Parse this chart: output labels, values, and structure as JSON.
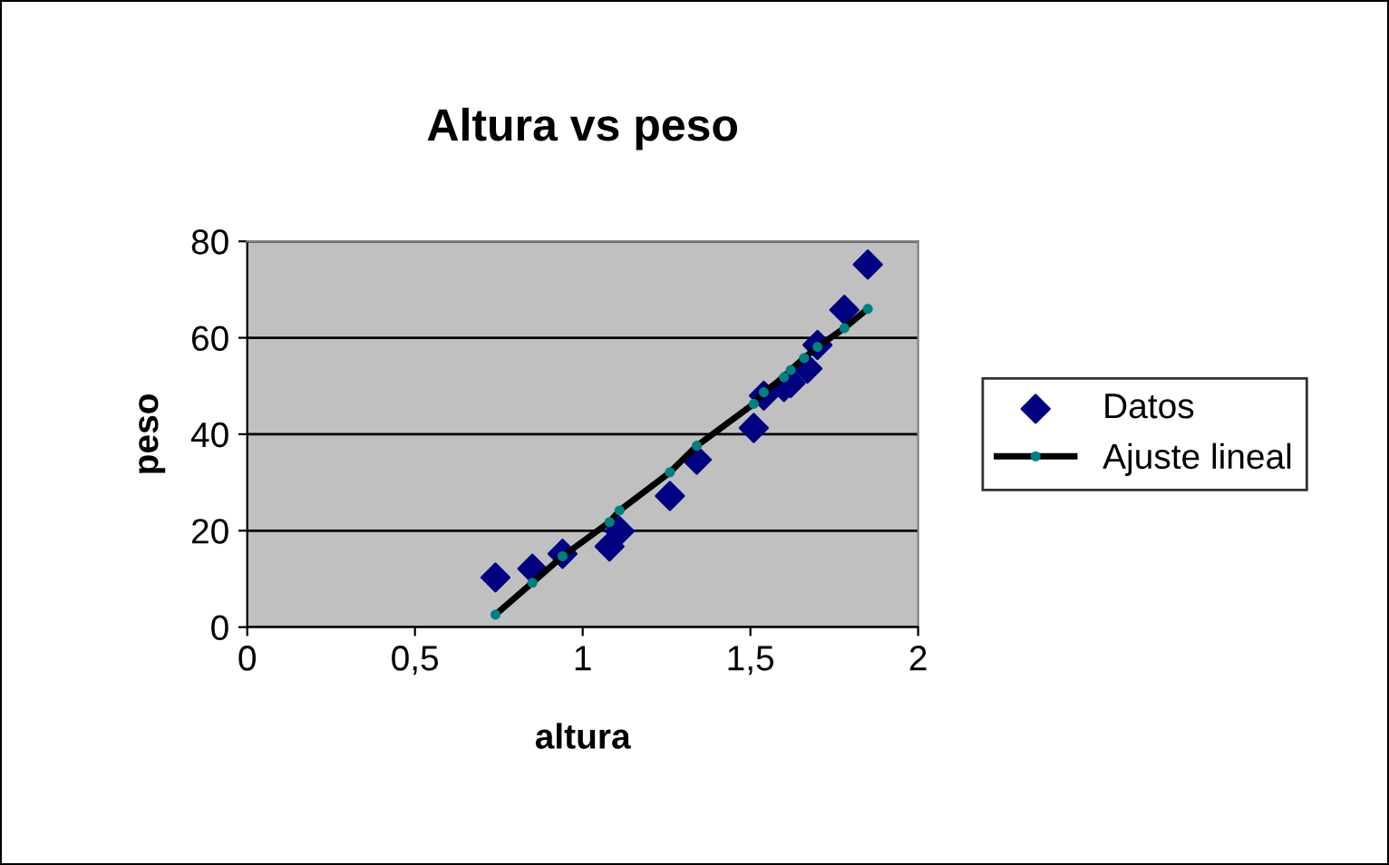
{
  "chart_data": {
    "type": "scatter",
    "title": "Altura vs peso",
    "xlabel": "altura",
    "ylabel": "peso",
    "xlim": [
      0,
      2
    ],
    "xticks": [
      0,
      {
        "value": 0.5,
        "label": "0,5"
      },
      1,
      {
        "value": 1.5,
        "label": "1,5"
      },
      2
    ],
    "ylim": [
      0,
      80
    ],
    "yticks": [
      0,
      20,
      40,
      60,
      80
    ],
    "grid": "y",
    "legend": "right",
    "series": [
      {
        "name": "Datos",
        "marker": "diamond",
        "color": "#000080",
        "x": [
          0.74,
          0.85,
          0.94,
          1.08,
          1.11,
          1.26,
          1.34,
          1.51,
          1.54,
          1.6,
          1.62,
          1.67,
          1.7,
          1.78,
          1.85
        ],
        "values": [
          10.3,
          12.1,
          15.2,
          16.7,
          19.9,
          27.2,
          34.7,
          41.3,
          48,
          49.8,
          50.6,
          53.6,
          58.5,
          65.8,
          75.2
        ]
      },
      {
        "name": "Ajuste lineal",
        "type": "line",
        "marker": "circle",
        "line_style": "solid",
        "color": "#000000",
        "x": [
          0.74,
          0.85,
          0.94,
          1.08,
          1.11,
          1.26,
          1.34,
          1.51,
          1.54,
          1.6,
          1.62,
          1.66,
          1.7,
          1.78,
          1.85
        ],
        "values": [
          2.6,
          9.2,
          14.7,
          21.8,
          24.2,
          32.1,
          37.6,
          46.3,
          48.7,
          51.8,
          53.3,
          55.8,
          58.1,
          62,
          66
        ]
      }
    ]
  }
}
